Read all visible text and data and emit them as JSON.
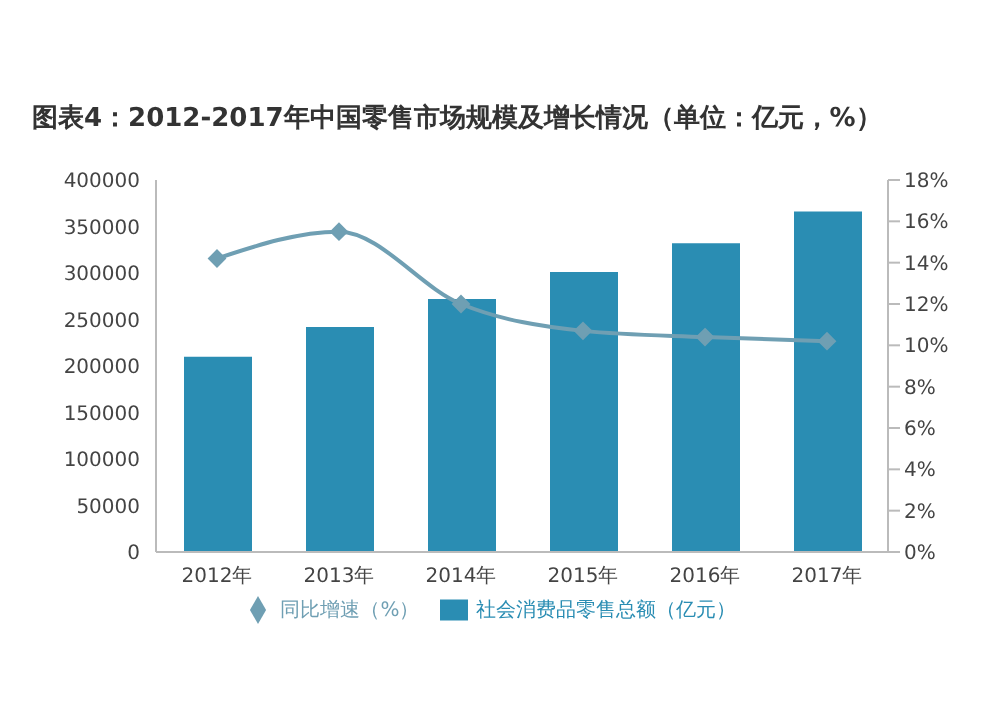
{
  "chart_data": {
    "type": "bar",
    "title": "图表4：2012-2017年中国零售市场规模及增长情况（单位：亿元，%）",
    "categories": [
      "2012年",
      "2013年",
      "2014年",
      "2015年",
      "2016年",
      "2017年"
    ],
    "series": [
      {
        "name": "社会消费品零售总额（亿元）",
        "color": "#2a8db3",
        "values": [
          210000,
          242000,
          272000,
          301000,
          332000,
          366000
        ]
      },
      {
        "name": "同比增速（%）",
        "type": "line",
        "axis": "y2",
        "color": "#6f9fb3",
        "marker": "diamond",
        "values": [
          14.2,
          15.5,
          12.0,
          10.7,
          10.4,
          10.2
        ]
      }
    ],
    "ylim": [
      0,
      400000
    ],
    "yticks": [
      0,
      50000,
      100000,
      150000,
      200000,
      250000,
      300000,
      350000,
      400000
    ],
    "y2lim": [
      0,
      18
    ],
    "y2ticks": [
      {
        "value": 0,
        "label": "0%"
      },
      {
        "value": 2,
        "label": "2%"
      },
      {
        "value": 4,
        "label": "4%"
      },
      {
        "value": 6,
        "label": "6%"
      },
      {
        "value": 8,
        "label": "8%"
      },
      {
        "value": 10,
        "label": "10%"
      },
      {
        "value": 12,
        "label": "12%"
      },
      {
        "value": 14,
        "label": "14%"
      },
      {
        "value": 16,
        "label": "16%"
      },
      {
        "value": 18,
        "label": "18%"
      }
    ],
    "legend": "bottom"
  }
}
